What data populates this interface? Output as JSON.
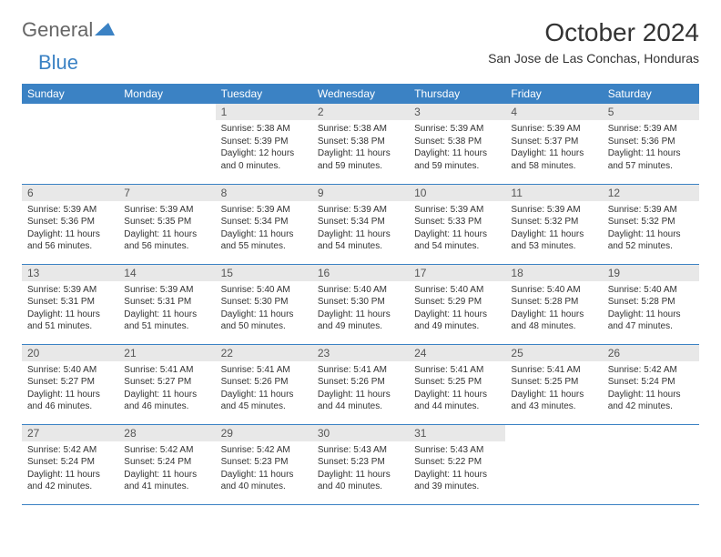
{
  "logo": {
    "text1": "General",
    "text2": "Blue"
  },
  "title": "October 2024",
  "location": "San Jose de Las Conchas, Honduras",
  "colors": {
    "header_bg": "#3b82c4",
    "header_text": "#ffffff",
    "daynum_bg": "#e8e8e8",
    "border": "#3b82c4",
    "logo_gray": "#666666",
    "logo_blue": "#3b82c4"
  },
  "weekdays": [
    "Sunday",
    "Monday",
    "Tuesday",
    "Wednesday",
    "Thursday",
    "Friday",
    "Saturday"
  ],
  "weeks": [
    [
      null,
      null,
      {
        "n": "1",
        "sunrise": "Sunrise: 5:38 AM",
        "sunset": "Sunset: 5:39 PM",
        "daylight": "Daylight: 12 hours and 0 minutes."
      },
      {
        "n": "2",
        "sunrise": "Sunrise: 5:38 AM",
        "sunset": "Sunset: 5:38 PM",
        "daylight": "Daylight: 11 hours and 59 minutes."
      },
      {
        "n": "3",
        "sunrise": "Sunrise: 5:39 AM",
        "sunset": "Sunset: 5:38 PM",
        "daylight": "Daylight: 11 hours and 59 minutes."
      },
      {
        "n": "4",
        "sunrise": "Sunrise: 5:39 AM",
        "sunset": "Sunset: 5:37 PM",
        "daylight": "Daylight: 11 hours and 58 minutes."
      },
      {
        "n": "5",
        "sunrise": "Sunrise: 5:39 AM",
        "sunset": "Sunset: 5:36 PM",
        "daylight": "Daylight: 11 hours and 57 minutes."
      }
    ],
    [
      {
        "n": "6",
        "sunrise": "Sunrise: 5:39 AM",
        "sunset": "Sunset: 5:36 PM",
        "daylight": "Daylight: 11 hours and 56 minutes."
      },
      {
        "n": "7",
        "sunrise": "Sunrise: 5:39 AM",
        "sunset": "Sunset: 5:35 PM",
        "daylight": "Daylight: 11 hours and 56 minutes."
      },
      {
        "n": "8",
        "sunrise": "Sunrise: 5:39 AM",
        "sunset": "Sunset: 5:34 PM",
        "daylight": "Daylight: 11 hours and 55 minutes."
      },
      {
        "n": "9",
        "sunrise": "Sunrise: 5:39 AM",
        "sunset": "Sunset: 5:34 PM",
        "daylight": "Daylight: 11 hours and 54 minutes."
      },
      {
        "n": "10",
        "sunrise": "Sunrise: 5:39 AM",
        "sunset": "Sunset: 5:33 PM",
        "daylight": "Daylight: 11 hours and 54 minutes."
      },
      {
        "n": "11",
        "sunrise": "Sunrise: 5:39 AM",
        "sunset": "Sunset: 5:32 PM",
        "daylight": "Daylight: 11 hours and 53 minutes."
      },
      {
        "n": "12",
        "sunrise": "Sunrise: 5:39 AM",
        "sunset": "Sunset: 5:32 PM",
        "daylight": "Daylight: 11 hours and 52 minutes."
      }
    ],
    [
      {
        "n": "13",
        "sunrise": "Sunrise: 5:39 AM",
        "sunset": "Sunset: 5:31 PM",
        "daylight": "Daylight: 11 hours and 51 minutes."
      },
      {
        "n": "14",
        "sunrise": "Sunrise: 5:39 AM",
        "sunset": "Sunset: 5:31 PM",
        "daylight": "Daylight: 11 hours and 51 minutes."
      },
      {
        "n": "15",
        "sunrise": "Sunrise: 5:40 AM",
        "sunset": "Sunset: 5:30 PM",
        "daylight": "Daylight: 11 hours and 50 minutes."
      },
      {
        "n": "16",
        "sunrise": "Sunrise: 5:40 AM",
        "sunset": "Sunset: 5:30 PM",
        "daylight": "Daylight: 11 hours and 49 minutes."
      },
      {
        "n": "17",
        "sunrise": "Sunrise: 5:40 AM",
        "sunset": "Sunset: 5:29 PM",
        "daylight": "Daylight: 11 hours and 49 minutes."
      },
      {
        "n": "18",
        "sunrise": "Sunrise: 5:40 AM",
        "sunset": "Sunset: 5:28 PM",
        "daylight": "Daylight: 11 hours and 48 minutes."
      },
      {
        "n": "19",
        "sunrise": "Sunrise: 5:40 AM",
        "sunset": "Sunset: 5:28 PM",
        "daylight": "Daylight: 11 hours and 47 minutes."
      }
    ],
    [
      {
        "n": "20",
        "sunrise": "Sunrise: 5:40 AM",
        "sunset": "Sunset: 5:27 PM",
        "daylight": "Daylight: 11 hours and 46 minutes."
      },
      {
        "n": "21",
        "sunrise": "Sunrise: 5:41 AM",
        "sunset": "Sunset: 5:27 PM",
        "daylight": "Daylight: 11 hours and 46 minutes."
      },
      {
        "n": "22",
        "sunrise": "Sunrise: 5:41 AM",
        "sunset": "Sunset: 5:26 PM",
        "daylight": "Daylight: 11 hours and 45 minutes."
      },
      {
        "n": "23",
        "sunrise": "Sunrise: 5:41 AM",
        "sunset": "Sunset: 5:26 PM",
        "daylight": "Daylight: 11 hours and 44 minutes."
      },
      {
        "n": "24",
        "sunrise": "Sunrise: 5:41 AM",
        "sunset": "Sunset: 5:25 PM",
        "daylight": "Daylight: 11 hours and 44 minutes."
      },
      {
        "n": "25",
        "sunrise": "Sunrise: 5:41 AM",
        "sunset": "Sunset: 5:25 PM",
        "daylight": "Daylight: 11 hours and 43 minutes."
      },
      {
        "n": "26",
        "sunrise": "Sunrise: 5:42 AM",
        "sunset": "Sunset: 5:24 PM",
        "daylight": "Daylight: 11 hours and 42 minutes."
      }
    ],
    [
      {
        "n": "27",
        "sunrise": "Sunrise: 5:42 AM",
        "sunset": "Sunset: 5:24 PM",
        "daylight": "Daylight: 11 hours and 42 minutes."
      },
      {
        "n": "28",
        "sunrise": "Sunrise: 5:42 AM",
        "sunset": "Sunset: 5:24 PM",
        "daylight": "Daylight: 11 hours and 41 minutes."
      },
      {
        "n": "29",
        "sunrise": "Sunrise: 5:42 AM",
        "sunset": "Sunset: 5:23 PM",
        "daylight": "Daylight: 11 hours and 40 minutes."
      },
      {
        "n": "30",
        "sunrise": "Sunrise: 5:43 AM",
        "sunset": "Sunset: 5:23 PM",
        "daylight": "Daylight: 11 hours and 40 minutes."
      },
      {
        "n": "31",
        "sunrise": "Sunrise: 5:43 AM",
        "sunset": "Sunset: 5:22 PM",
        "daylight": "Daylight: 11 hours and 39 minutes."
      },
      null,
      null
    ]
  ]
}
